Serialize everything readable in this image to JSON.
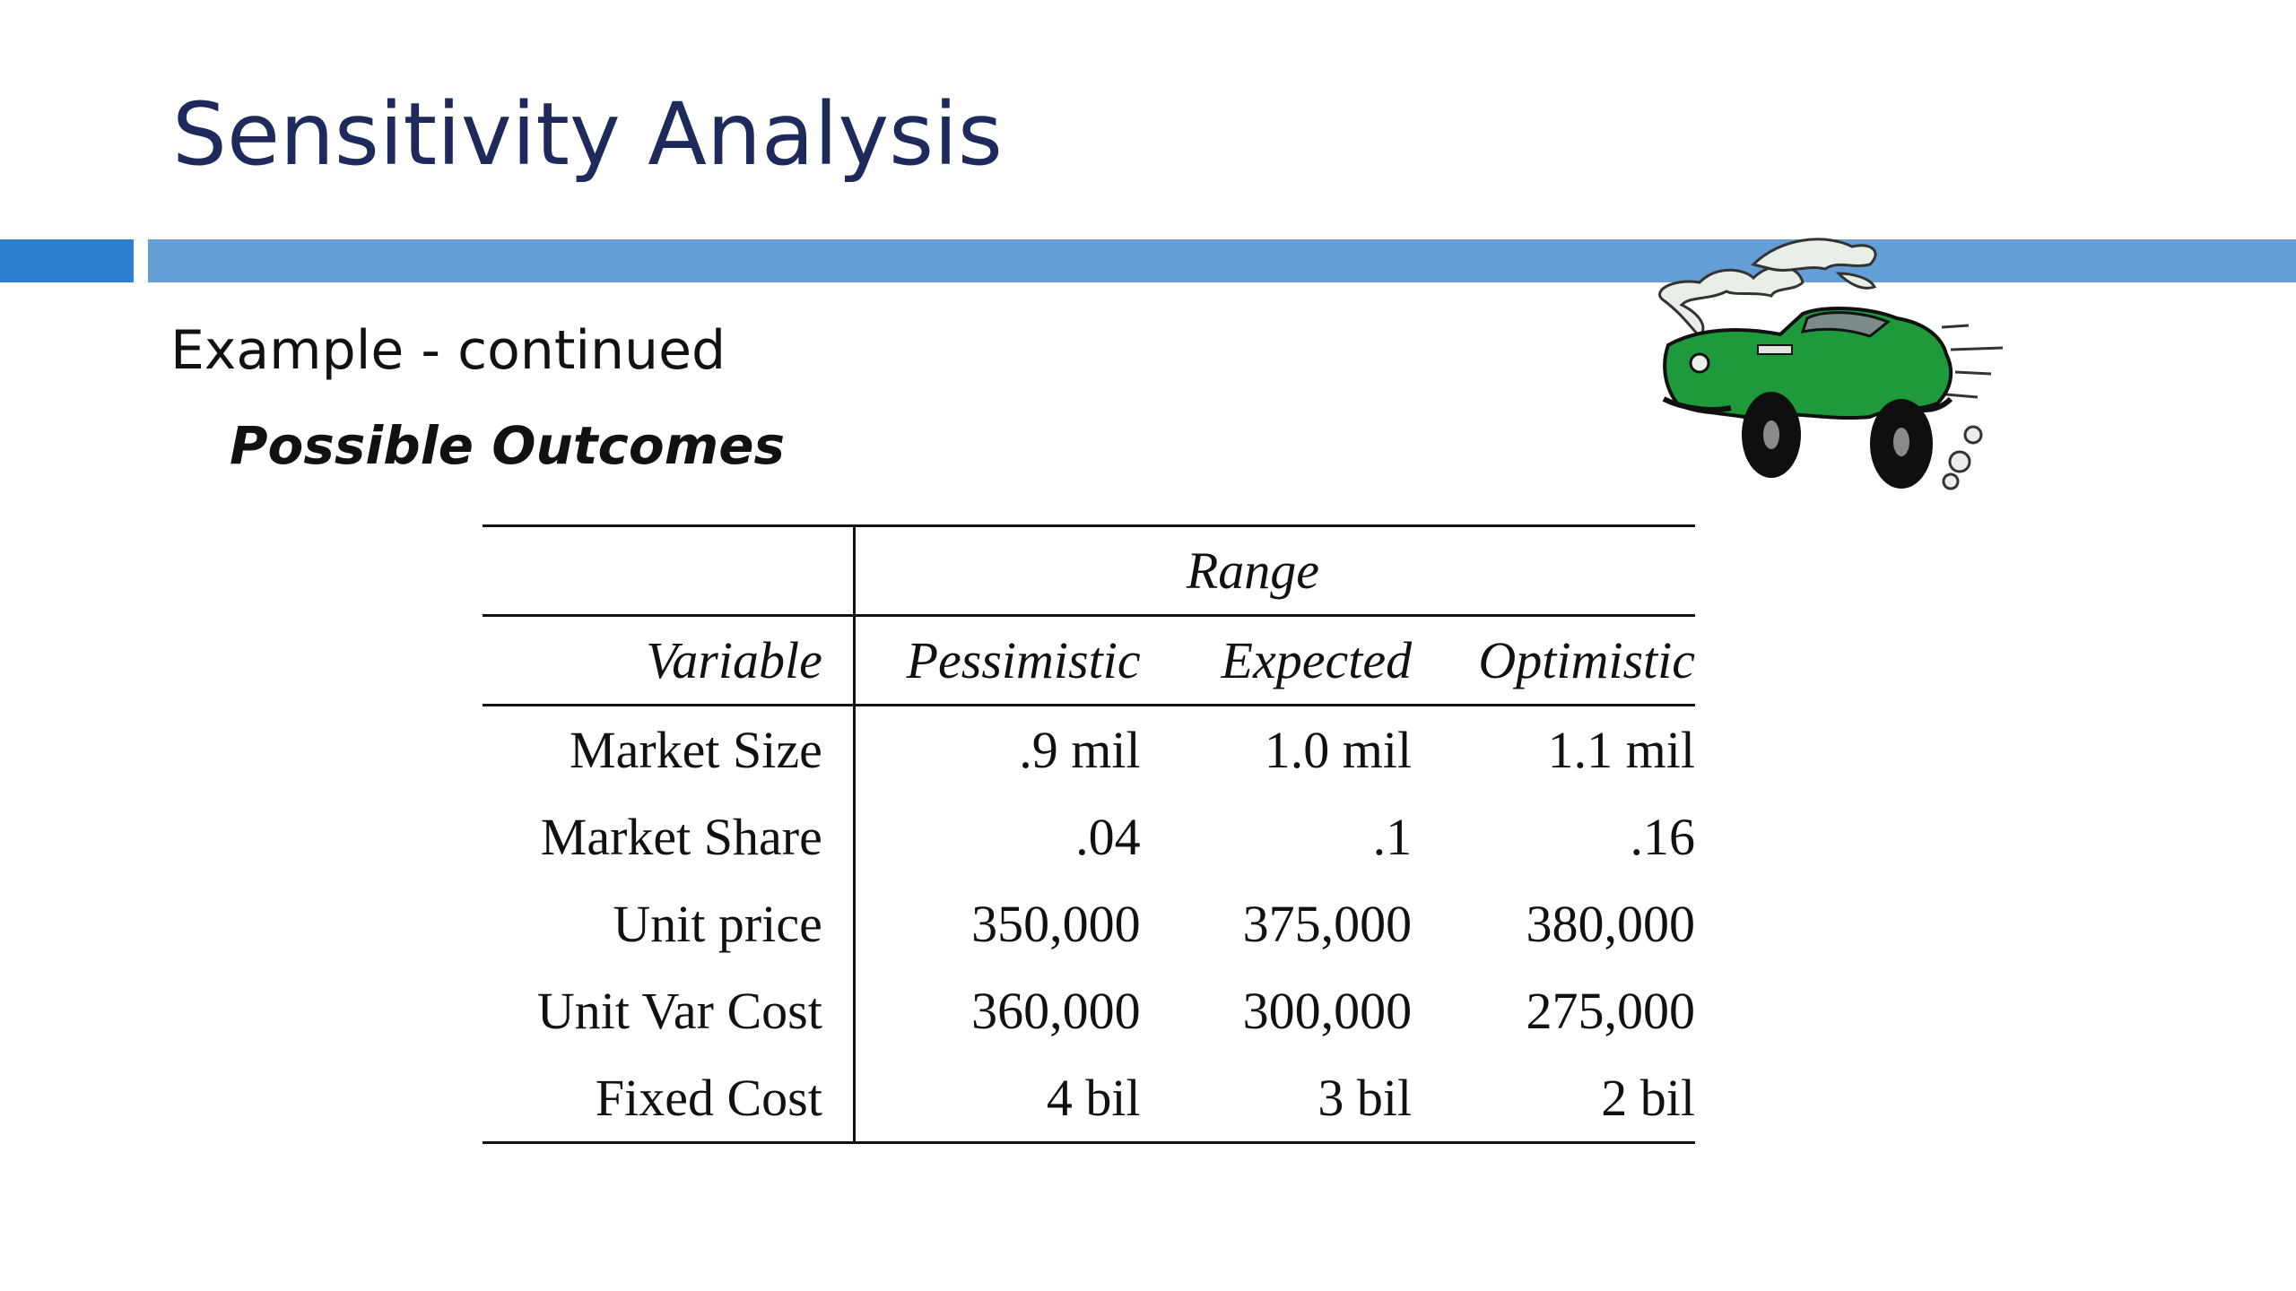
{
  "slide": {
    "title": "Sensitivity Analysis",
    "subtitle": "Example - continued",
    "section": "Possible Outcomes"
  },
  "table": {
    "range_header": "Range",
    "columns": [
      "Variable",
      "Pessimistic",
      "Expected",
      "Optimistic"
    ],
    "rows": [
      {
        "variable": "Market Size",
        "pessimistic": ".9 mil",
        "expected": "1.0 mil",
        "optimistic": "1.1 mil"
      },
      {
        "variable": "Market Share",
        "pessimistic": ".04",
        "expected": ".1",
        "optimistic": ".16"
      },
      {
        "variable": "Unit price",
        "pessimistic": "350,000",
        "expected": "375,000",
        "optimistic": "380,000"
      },
      {
        "variable": "Unit Var Cost",
        "pessimistic": "360,000",
        "expected": "300,000",
        "optimistic": "275,000"
      },
      {
        "variable": "Fixed Cost",
        "pessimistic": "4 bil",
        "expected": "3 bil",
        "optimistic": "2 bil"
      }
    ]
  },
  "colors": {
    "title": "#1f2a5c",
    "accent_bar_left": "#2f7fd0",
    "accent_bar_main": "#639fd6",
    "car_body": "#1e9a3c"
  },
  "icons": {
    "car": "green-car-clipart-icon"
  }
}
